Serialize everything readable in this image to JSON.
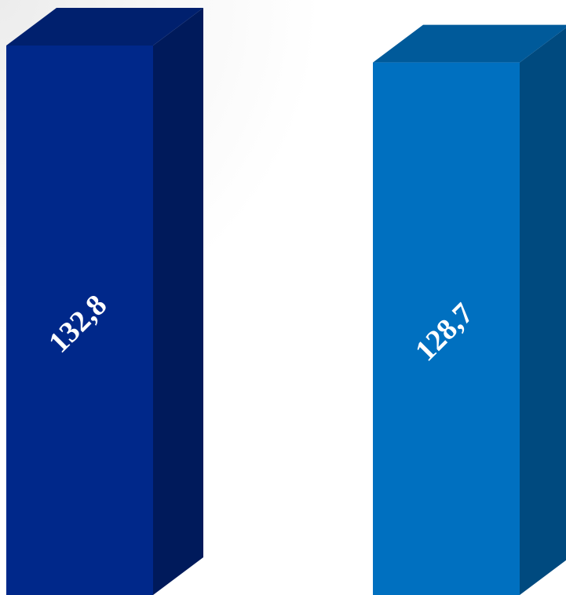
{
  "chart_data": {
    "type": "bar",
    "style": "3d",
    "categories": [
      "",
      ""
    ],
    "values": [
      132.8,
      128.7
    ],
    "data_labels": [
      "132,8",
      "128,7"
    ],
    "colors": [
      "#00288a",
      "#0070c0"
    ],
    "title": "",
    "xlabel": "",
    "ylabel": "",
    "ylim": [
      0,
      132.8
    ],
    "grid": false,
    "legend": "none"
  }
}
